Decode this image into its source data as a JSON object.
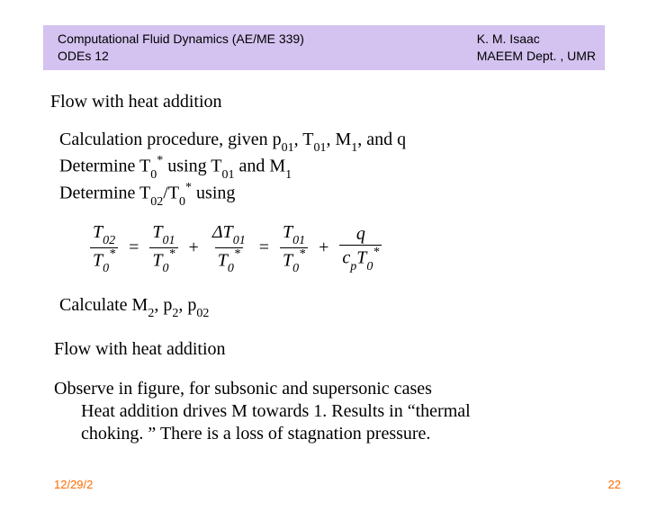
{
  "header": {
    "left_line1": "Computational Fluid Dynamics (AE/ME 339)",
    "left_line2": "ODEs 12",
    "right_line1": "K. M. Isaac",
    "right_line2": "MAEEM Dept. , UMR",
    "bg_color": "#d4c2f0"
  },
  "section1_title": "Flow with heat addition",
  "body": {
    "line1_pre": "Calculation procedure, given p",
    "line1_s1": "01",
    "line1_mid1": ", T",
    "line1_s2": "01",
    "line1_mid2": ", M",
    "line1_s3": "1",
    "line1_post": ", and q",
    "line2_pre": "Determine T",
    "line2_s1": "0",
    "line2_sup1": "*",
    "line2_mid": " using T",
    "line2_s2": "01",
    "line2_mid2": " and M",
    "line2_s3": "1",
    "line3_pre": "Determine T",
    "line3_s1": "02",
    "line3_mid": "/T",
    "line3_s2": "0",
    "line3_sup": "*",
    "line3_post": " using"
  },
  "eqn": {
    "T02": "T",
    "T02s": "02",
    "T0": "T",
    "T0s": "0",
    "star": "*",
    "T01": "T",
    "T01s": "01",
    "dT01": "ΔT",
    "dT01s": "01",
    "q": "q",
    "cp": "c",
    "cps": "p"
  },
  "calc": {
    "pre": "Calculate M",
    "s1": "2",
    "mid1": ", p",
    "s2": "2",
    "mid2": ", p",
    "s3": "02"
  },
  "section2_title": "Flow with heat addition",
  "observe": {
    "line1": "Observe in figure, for subsonic and supersonic cases",
    "line2": "Heat addition drives M towards 1. Results in “thermal",
    "line3": "choking. ”  There is a loss of stagnation pressure."
  },
  "footer": {
    "date": "12/29/2",
    "page": "22"
  }
}
